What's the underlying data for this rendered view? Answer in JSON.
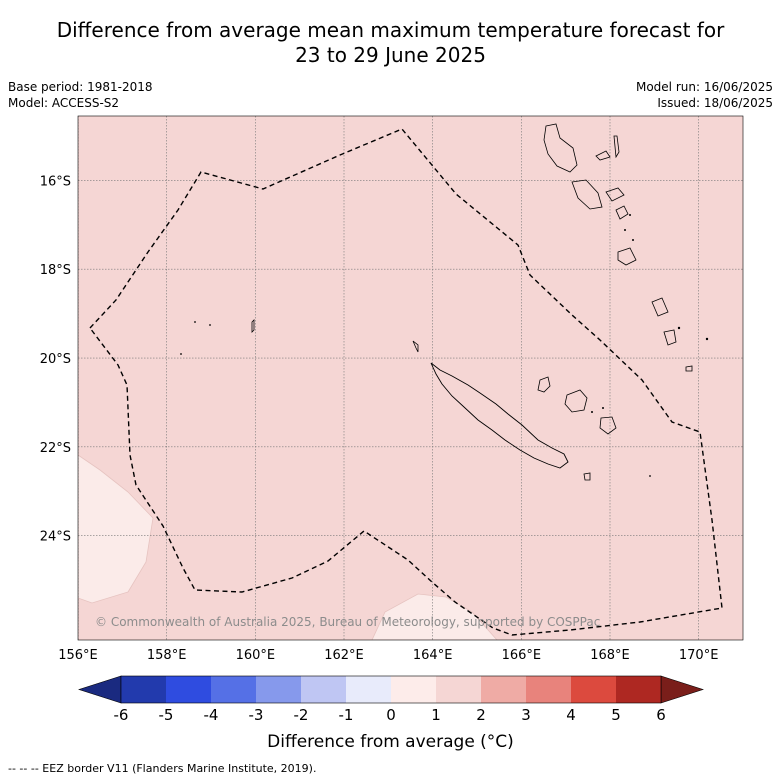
{
  "title_line1": "Difference from average mean maximum temperature forecast for",
  "title_line2": "23 to 29 June 2025",
  "meta_left": [
    "Base period: 1981-2018",
    "Model: ACCESS-S2"
  ],
  "meta_right": [
    "Model run: 16/06/2025",
    "Issued: 18/06/2025"
  ],
  "copyright": "© Commonwealth of Australia 2025, Bureau of Meteorology, supported by COSPPac",
  "map": {
    "lon_range": [
      156,
      171
    ],
    "lat_range": [
      -26.35,
      -14.55
    ],
    "lon_ticks": [
      "156°E",
      "158°E",
      "160°E",
      "162°E",
      "164°E",
      "166°E",
      "168°E",
      "170°E"
    ],
    "lat_ticks": [
      "16°S",
      "18°S",
      "20°S",
      "22°S",
      "24°S"
    ],
    "gridlines": true,
    "background_anomaly_class": "1 to 2",
    "background_color": "#f5d6d4",
    "weak_anomaly_color": "#fbebe9"
  },
  "colorbar": {
    "title": "Difference from average (°C)",
    "tick_labels": [
      "-6",
      "-5",
      "-4",
      "-3",
      "-2",
      "-1",
      "0",
      "1",
      "2",
      "3",
      "4",
      "5",
      "6"
    ],
    "colors": [
      "#223aad",
      "#2f4ce0",
      "#5570e6",
      "#8699ec",
      "#bfc6f3",
      "#e8ebfb",
      "#fdecea",
      "#f5d6d4",
      "#efaba5",
      "#e8837c",
      "#dc4a3e",
      "#ae2822"
    ],
    "under_color": "#1a2a80",
    "over_color": "#7a1e1a"
  },
  "legend_note": "-- -- -- EEZ border V11 (Flanders Marine Institute, 2019)."
}
